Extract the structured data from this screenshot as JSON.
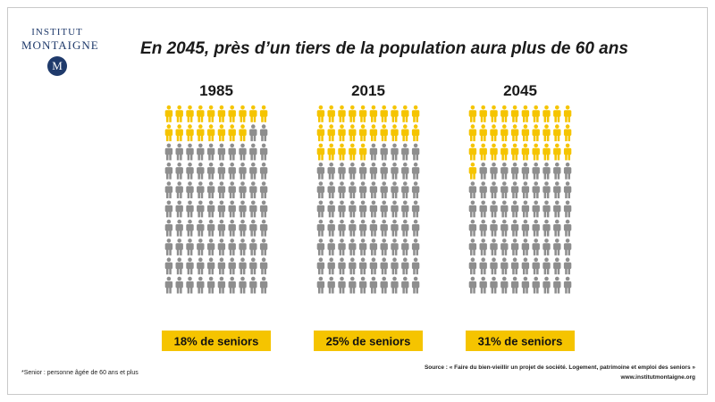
{
  "logo": {
    "line1": "INSTITUT",
    "line2": "MONTAIGNE",
    "seal": "M"
  },
  "colors": {
    "senior": "#F5C400",
    "other": "#8E8E8E",
    "label_bg": "#F5C400",
    "title": "#1a1a1a"
  },
  "chart_data": {
    "type": "pictogram",
    "title": "En 2045, près d’un tiers de la population aura plus de 60 ans",
    "total_figures": 100,
    "columns_per_panel": 10,
    "panels": [
      {
        "year": "1985",
        "senior_share": 18,
        "label": "18% de seniors"
      },
      {
        "year": "2015",
        "senior_share": 25,
        "label": "25% de seniors"
      },
      {
        "year": "2045",
        "senior_share": 31,
        "label": "31% de seniors"
      }
    ]
  },
  "footnote": "*Senior : personne âgée de 60 ans et plus",
  "source": {
    "line1": "Source : « Faire du bien-vieillir un projet de société. Logement, patrimoine  et emploi des seniors »",
    "line2": "www.institutmontaigne.org"
  }
}
